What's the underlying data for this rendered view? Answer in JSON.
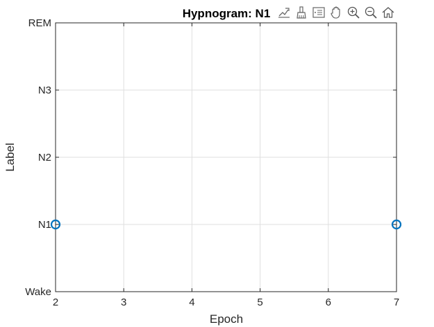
{
  "chart_data": {
    "type": "scatter",
    "title": "Hypnogram: N1",
    "xlabel": "Epoch",
    "ylabel": "Label",
    "xlim": [
      2,
      7
    ],
    "ylim": [
      0,
      4
    ],
    "xticks": [
      2,
      3,
      4,
      5,
      6,
      7
    ],
    "yticks": [
      0,
      1,
      2,
      3,
      4
    ],
    "yticklabels": [
      "Wake",
      "N1",
      "N2",
      "N3",
      "REM"
    ],
    "grid": true,
    "series": [
      {
        "x": [
          2,
          7
        ],
        "y": [
          1,
          1
        ],
        "marker": "circle",
        "color": "#0072BD"
      }
    ]
  },
  "toolbar": {
    "icons": [
      "data-tips-icon",
      "brush-icon",
      "legend-icon",
      "pan-icon",
      "zoom-in-icon",
      "zoom-out-icon",
      "home-icon"
    ]
  }
}
